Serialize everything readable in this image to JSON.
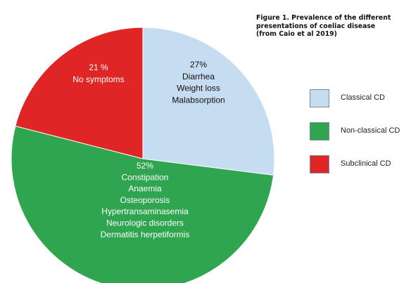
{
  "caption": {
    "lines": [
      "Figure 1. Prevalence of the different",
      "presentations of coeliac disease",
      "(from Caio et al 2019)"
    ]
  },
  "chart_data": {
    "type": "pie",
    "title": "",
    "start_angle_deg": 0,
    "direction": "clockwise",
    "slices": [
      {
        "name": "Classical CD",
        "value": 27,
        "color": "#c6dcf0",
        "label_lines": [
          "27%",
          "Diarrhea",
          "Weight loss",
          "Malabsorption"
        ],
        "label_color": "#111111"
      },
      {
        "name": "Non-classical CD",
        "value": 52,
        "color": "#2fa54f",
        "label_lines": [
          "52%",
          "Constipation",
          "Anaemia",
          "Osteoporosis",
          "Hypertransaminasemia",
          "Neurologic disorders",
          "Dermatitis herpetiformis"
        ],
        "label_color": "#ffffff"
      },
      {
        "name": "Subclinical CD",
        "value": 21,
        "color": "#e02525",
        "label_lines": [
          "21 %",
          "No symptoms"
        ],
        "label_color": "#ffffff"
      }
    ],
    "legend": {
      "placement": "right",
      "entries": [
        "Classical CD",
        "Non-classical CD",
        "Subclinical CD"
      ]
    }
  }
}
